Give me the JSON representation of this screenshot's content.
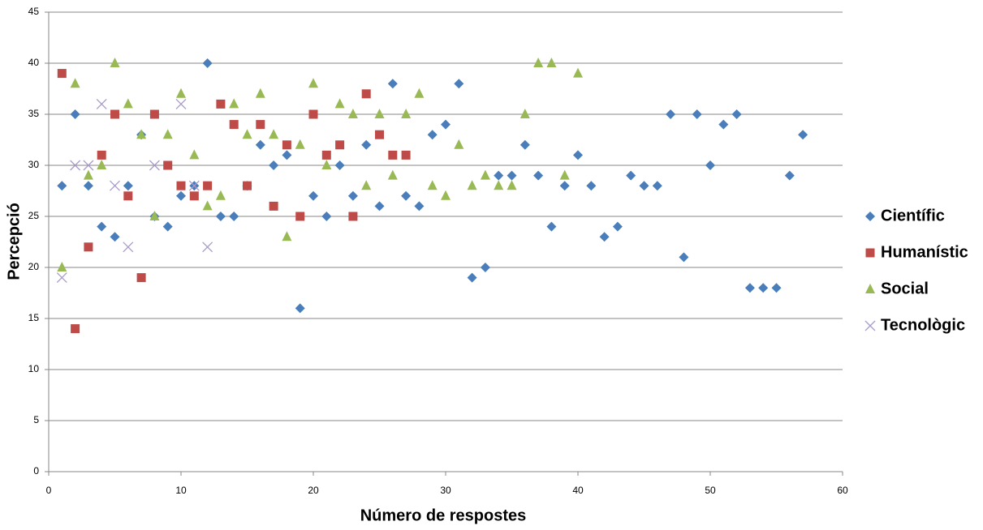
{
  "chart_data": {
    "type": "scatter",
    "x_label": "Número de respostes",
    "y_label": "Percepció",
    "xlim": [
      0,
      60
    ],
    "xticks": [
      0,
      10,
      20,
      30,
      40,
      50,
      60
    ],
    "ylim": [
      0,
      45
    ],
    "yticks": [
      0,
      5,
      10,
      15,
      20,
      25,
      30,
      35,
      40,
      45
    ],
    "grid": true,
    "legend": "right",
    "series": [
      {
        "name": "Científic",
        "color": "#4a7ebb",
        "marker": "diamond",
        "x": [
          1,
          2,
          3,
          4,
          5,
          6,
          7,
          8,
          9,
          10,
          11,
          12,
          13,
          14,
          15,
          16,
          17,
          18,
          19,
          20,
          21,
          22,
          23,
          24,
          25,
          26,
          27,
          28,
          29,
          30,
          31,
          32,
          33,
          34,
          35,
          36,
          37,
          38,
          39,
          40,
          41,
          42,
          43,
          44,
          45,
          46,
          47,
          48,
          49,
          50,
          51,
          52,
          53,
          54,
          55,
          56,
          57
        ],
        "values": [
          28,
          35,
          28,
          24,
          23,
          28,
          33,
          25,
          24,
          27,
          28,
          40,
          25,
          25,
          28,
          32,
          30,
          31,
          16,
          27,
          25,
          30,
          27,
          32,
          26,
          38,
          27,
          26,
          33,
          34,
          38,
          19,
          20,
          29,
          29,
          32,
          29,
          24,
          28,
          31,
          28,
          23,
          24,
          29,
          28,
          28,
          35,
          21,
          35,
          30,
          34,
          35,
          18,
          18,
          18,
          29,
          33
        ]
      },
      {
        "name": "Humanístic",
        "color": "#be4b48",
        "marker": "square",
        "x": [
          1,
          2,
          3,
          4,
          5,
          6,
          7,
          8,
          9,
          10,
          11,
          12,
          13,
          14,
          15,
          16,
          17,
          18,
          19,
          20,
          21,
          22,
          23,
          24,
          25,
          26,
          27
        ],
        "values": [
          39,
          14,
          22,
          31,
          35,
          27,
          19,
          35,
          30,
          28,
          27,
          28,
          36,
          34,
          28,
          34,
          26,
          32,
          25,
          35,
          31,
          32,
          25,
          37,
          33,
          31,
          31
        ]
      },
      {
        "name": "Social",
        "color": "#98b954",
        "marker": "triangle",
        "x": [
          1,
          2,
          3,
          4,
          5,
          6,
          7,
          8,
          9,
          10,
          11,
          12,
          13,
          14,
          15,
          16,
          17,
          18,
          19,
          20,
          21,
          22,
          23,
          24,
          25,
          26,
          27,
          28,
          29,
          30,
          31,
          32,
          33,
          34,
          35,
          36,
          37,
          38,
          39,
          40
        ],
        "values": [
          20,
          38,
          29,
          30,
          40,
          36,
          33,
          25,
          33,
          37,
          31,
          26,
          27,
          36,
          33,
          37,
          33,
          23,
          32,
          38,
          30,
          36,
          35,
          28,
          35,
          29,
          35,
          37,
          28,
          27,
          32,
          28,
          29,
          28,
          28,
          35,
          40,
          40,
          29,
          39
        ]
      },
      {
        "name": "Tecnològic",
        "color": "#a99bcb",
        "marker": "x",
        "x": [
          1,
          2,
          3,
          4,
          5,
          6,
          8,
          10,
          11,
          12
        ],
        "values": [
          19,
          30,
          30,
          36,
          28,
          22,
          30,
          36,
          28,
          22
        ]
      }
    ]
  }
}
